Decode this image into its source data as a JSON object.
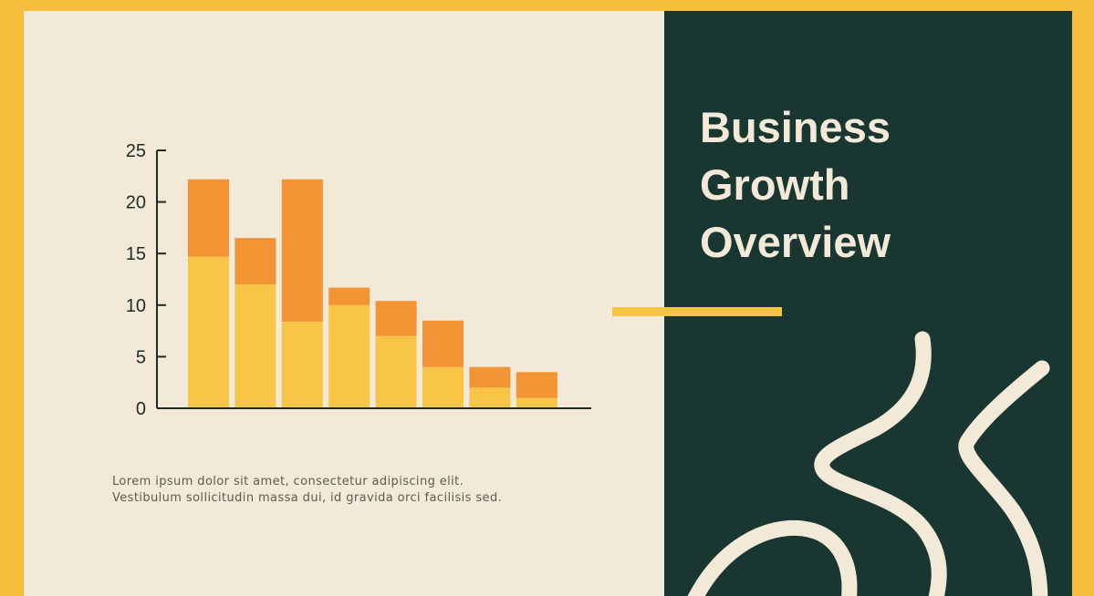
{
  "colors": {
    "frame": "#f5bd3c",
    "left_bg": "#f3e9d8",
    "right_bg": "#193630",
    "bar_bottom": "#f8c546",
    "bar_top": "#f29334",
    "accent": "#f6c445",
    "deco_stroke": "#f3e9d8",
    "axis": "#1f2b27"
  },
  "title": {
    "line1": "Business",
    "line2": "Growth",
    "line3": "Overview"
  },
  "caption": {
    "line1": "Lorem ipsum dolor sit amet, consectetur adipiscing elit.",
    "line2": "Vestibulum sollicitudin massa dui, id gravida orci facilisis sed."
  },
  "chart_data": {
    "type": "bar",
    "stacked": true,
    "categories": [
      "",
      "",
      "",
      "",
      "",
      "",
      "",
      ""
    ],
    "series": [
      {
        "values": [
          14.7,
          12.0,
          8.4,
          10.0,
          7.0,
          4.0,
          2.0,
          1.0
        ]
      },
      {
        "values": [
          7.5,
          4.5,
          13.8,
          1.7,
          3.4,
          4.5,
          2.0,
          2.5
        ]
      }
    ],
    "title": "",
    "xlabel": "",
    "ylabel": "",
    "ylim": [
      0,
      25
    ],
    "yticks": [
      0,
      5,
      10,
      15,
      20,
      25
    ],
    "grid": false,
    "legend": "none"
  },
  "decoration": {
    "icon": "abstract-line-art-icon"
  }
}
